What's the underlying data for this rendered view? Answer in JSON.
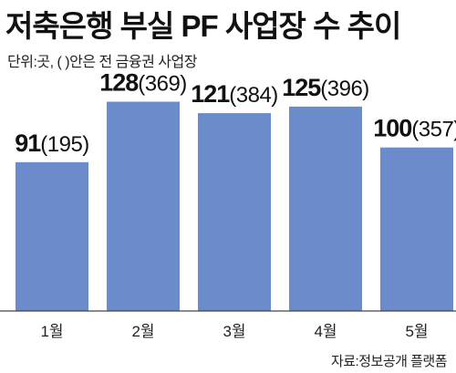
{
  "title": "저축은행 부실 PF 사업장 수 추이",
  "subtitle": "단위:곳, (  )안은 전 금융권 사업장",
  "source": "자료:정보공개 플랫폼",
  "chart_data": {
    "type": "bar",
    "title": "저축은행 부실 PF 사업장 수 추이",
    "categories": [
      "1월",
      "2월",
      "3월",
      "4월",
      "5월"
    ],
    "series": [
      {
        "values": [
          91,
          128,
          121,
          125,
          100
        ]
      },
      {
        "values": [
          195,
          369,
          384,
          396,
          357
        ]
      }
    ],
    "bar_series": 0,
    "label_format": "{v}({p})",
    "ylim": [
      0,
      140
    ],
    "grid": false,
    "bar_color": "#6b8bcb"
  }
}
